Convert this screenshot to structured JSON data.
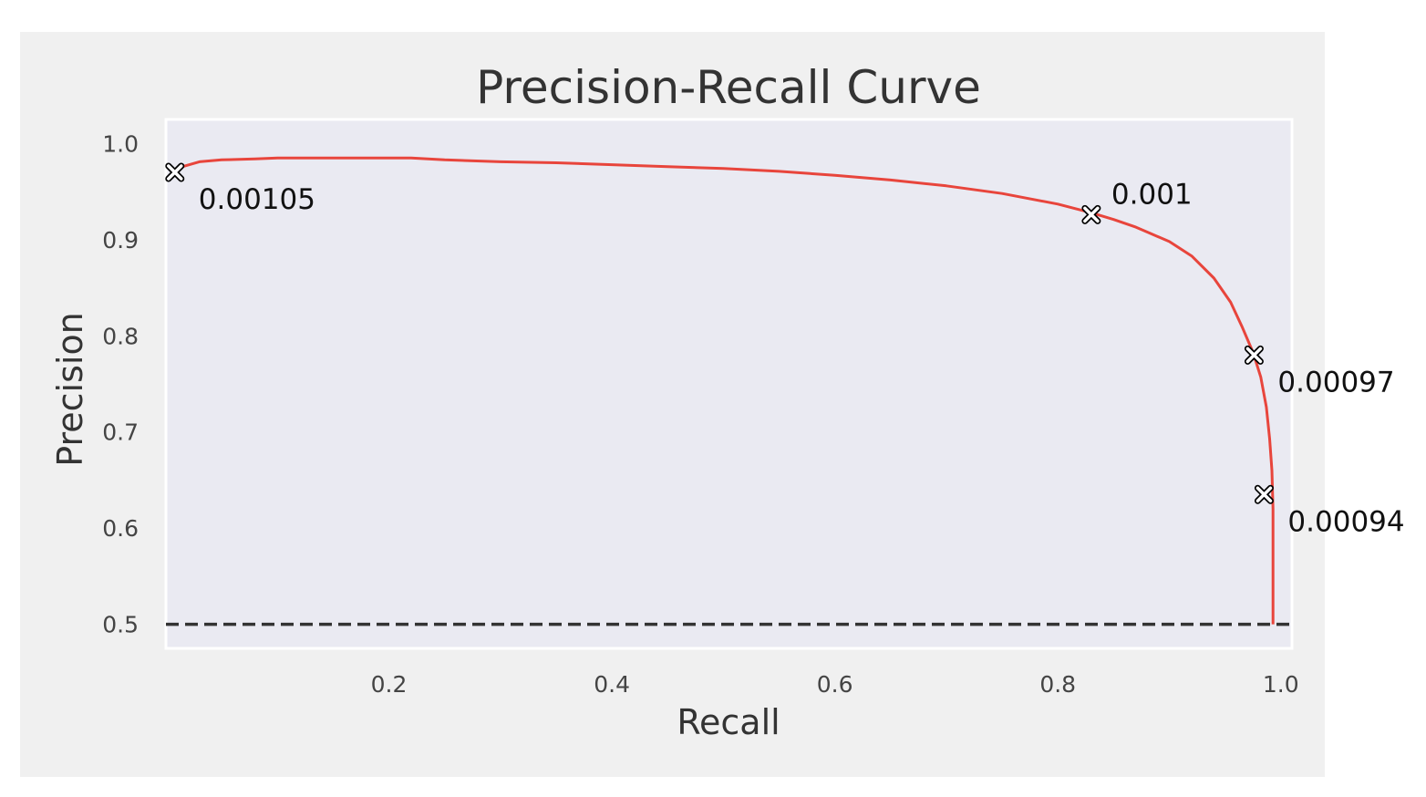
{
  "chart_data": {
    "type": "line",
    "title": "Precision-Recall Curve",
    "xlabel": "Recall",
    "ylabel": "Precision",
    "xlim": [
      0.0,
      1.01
    ],
    "ylim": [
      0.475,
      1.025
    ],
    "grid": false,
    "xticks": [
      0.2,
      0.4,
      0.6,
      0.8,
      1.0
    ],
    "xtick_labels": [
      "0.2",
      "0.4",
      "0.6",
      "0.8",
      "1.0"
    ],
    "yticks": [
      0.5,
      0.6,
      0.7,
      0.8,
      0.9,
      1.0
    ],
    "ytick_labels": [
      "0.5",
      "0.6",
      "0.7",
      "0.8",
      "0.9",
      "1.0"
    ],
    "series": [
      {
        "color": "#e8453c",
        "style": "solid",
        "x": [
          0.008,
          0.015,
          0.03,
          0.05,
          0.08,
          0.1,
          0.15,
          0.2,
          0.22,
          0.25,
          0.3,
          0.35,
          0.4,
          0.45,
          0.5,
          0.55,
          0.6,
          0.65,
          0.7,
          0.75,
          0.8,
          0.83,
          0.85,
          0.87,
          0.9,
          0.92,
          0.94,
          0.955,
          0.965,
          0.975,
          0.982,
          0.987,
          0.99,
          0.992,
          0.993,
          0.993
        ],
        "y": [
          0.97,
          0.976,
          0.981,
          0.983,
          0.984,
          0.985,
          0.985,
          0.985,
          0.985,
          0.983,
          0.981,
          0.98,
          0.978,
          0.976,
          0.974,
          0.971,
          0.967,
          0.962,
          0.956,
          0.948,
          0.937,
          0.928,
          0.921,
          0.913,
          0.898,
          0.883,
          0.86,
          0.835,
          0.81,
          0.783,
          0.757,
          0.726,
          0.693,
          0.66,
          0.62,
          0.5
        ]
      },
      {
        "color": "#333333",
        "style": "dashed",
        "x": [
          0.0,
          1.01
        ],
        "y": [
          0.5,
          0.5
        ]
      }
    ],
    "annotations": [
      {
        "x": 0.008,
        "y": 0.97,
        "label": "0.00105",
        "anchor": "below-right"
      },
      {
        "x": 0.83,
        "y": 0.926,
        "label": "0.001",
        "anchor": "above-right"
      },
      {
        "x": 0.976,
        "y": 0.78,
        "label": "0.00097",
        "anchor": "below-right"
      },
      {
        "x": 0.985,
        "y": 0.635,
        "label": "0.00094",
        "anchor": "below-right"
      }
    ],
    "colors": {
      "figure_bg": "#f0f0f0",
      "plot_bg": "#eaeaf2",
      "frame": "#ffffff",
      "marker_fill": "#ffffff",
      "marker_edge": "#000000"
    }
  }
}
